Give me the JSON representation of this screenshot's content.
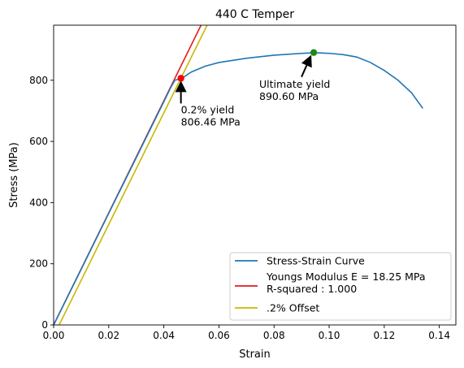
{
  "chart_data": {
    "type": "line",
    "title": "440 C Temper",
    "xlabel": "Strain",
    "ylabel": "Stress (MPa)",
    "xlim": [
      0.0,
      0.146
    ],
    "ylim": [
      0,
      980
    ],
    "xticks": [
      0.0,
      0.02,
      0.04,
      0.06,
      0.08,
      0.1,
      0.12,
      0.14
    ],
    "xtick_labels": [
      "0.00",
      "0.02",
      "0.04",
      "0.06",
      "0.08",
      "0.10",
      "0.12",
      "0.14"
    ],
    "yticks": [
      0,
      200,
      400,
      600,
      800
    ],
    "ytick_labels": [
      "0",
      "200",
      "400",
      "600",
      "800"
    ],
    "grid": false,
    "legend_position": "bottom-right",
    "series": [
      {
        "name": "Stress-Strain Curve",
        "color": "#1f77b4",
        "x": [
          0.0,
          0.01,
          0.02,
          0.03,
          0.04,
          0.0425,
          0.044,
          0.0465,
          0.05,
          0.055,
          0.06,
          0.07,
          0.08,
          0.09,
          0.095,
          0.1,
          0.105,
          0.11,
          0.115,
          0.12,
          0.125,
          0.13,
          0.134
        ],
        "y": [
          0,
          182,
          365,
          547,
          730,
          776,
          800,
          806,
          827,
          846,
          858,
          872,
          882,
          888,
          890,
          888,
          884,
          876,
          858,
          832,
          800,
          758,
          708
        ]
      },
      {
        "name": "Youngs Modulus E = 18.25 MPa\n R-squared : 1.000",
        "color": "#e41a1c",
        "x": [
          0.0,
          0.0535
        ],
        "y": [
          0,
          980
        ]
      },
      {
        "name": ".2% Offset",
        "color": "#c8b800",
        "x": [
          0.002,
          0.0557
        ],
        "y": [
          0,
          980
        ]
      }
    ],
    "markers": [
      {
        "x": 0.0462,
        "y": 806.46,
        "color": "#ff0000"
      },
      {
        "x": 0.0944,
        "y": 890.6,
        "color": "#1a8a1a"
      }
    ],
    "annotations": [
      {
        "text": "0.2% yield\n 806.46 MPa",
        "x": 0.0462,
        "y": 806.46,
        "text_x": 0.0462,
        "text_y": 690
      },
      {
        "text": "Ultimate yield\n 890.60 MPa",
        "x": 0.0944,
        "y": 890.6,
        "text_x": 0.075,
        "text_y": 770
      }
    ]
  }
}
